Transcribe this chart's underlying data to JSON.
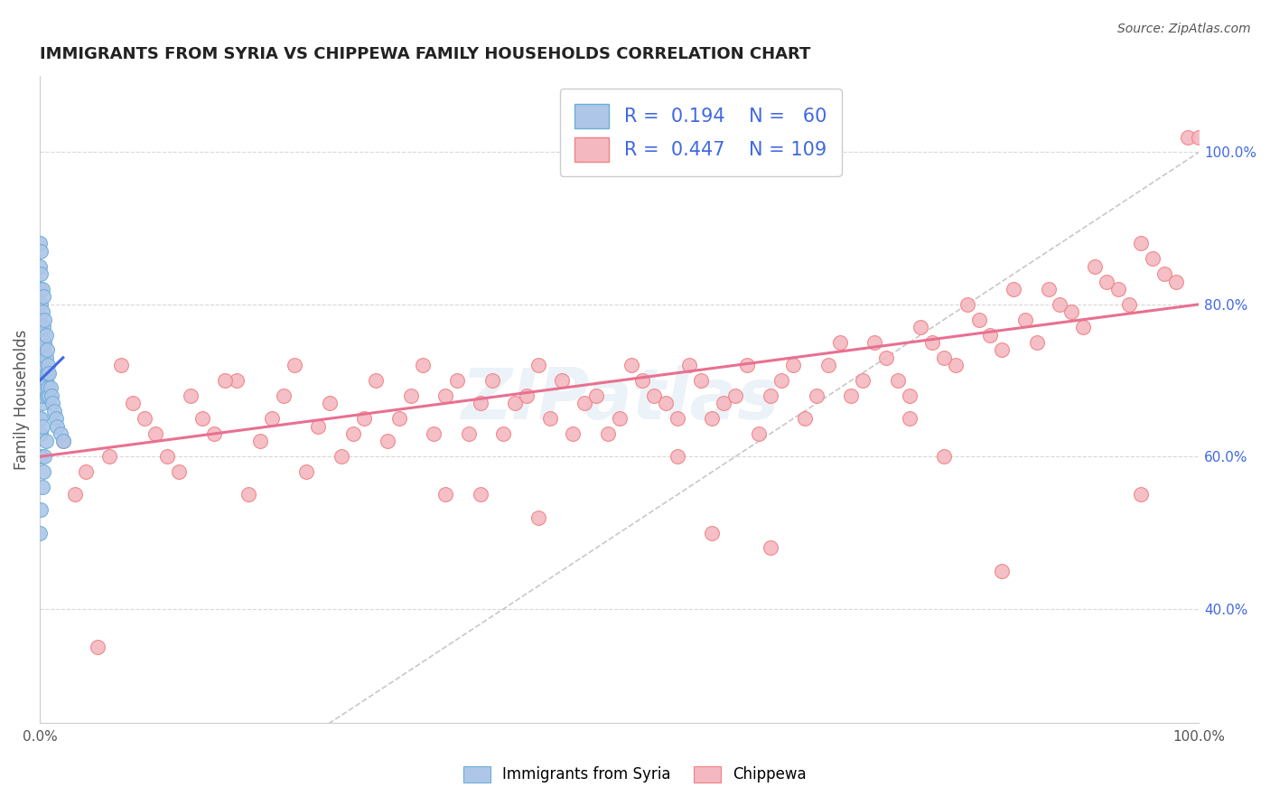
{
  "title": "IMMIGRANTS FROM SYRIA VS CHIPPEWA FAMILY HOUSEHOLDS CORRELATION CHART",
  "source": "Source: ZipAtlas.com",
  "ylabel": "Family Households",
  "watermark": "ZIPatlas",
  "right_yticks": [
    "40.0%",
    "60.0%",
    "80.0%",
    "100.0%"
  ],
  "right_ytick_vals": [
    0.4,
    0.6,
    0.8,
    1.0
  ],
  "xlim": [
    0.0,
    1.0
  ],
  "ylim": [
    0.25,
    1.1
  ],
  "blue_R": "0.194",
  "blue_N": "60",
  "pink_R": "0.447",
  "pink_N": "109",
  "blue_color": "#aec6e8",
  "pink_color": "#f4b8c1",
  "blue_edge": "#6baed6",
  "pink_edge": "#f08080",
  "blue_line_color": "#4169e1",
  "pink_line_color": "#e87090",
  "diagonal_color": "#c8c8c8",
  "grid_color": "#d8d8d8",
  "title_color": "#222222",
  "source_color": "#555555",
  "legend_text_color": "#4169e1",
  "blue_scatter_x": [
    0.0,
    0.0,
    0.0,
    0.0,
    0.0,
    0.0,
    0.0,
    0.0,
    0.0,
    0.0,
    0.001,
    0.001,
    0.001,
    0.001,
    0.001,
    0.001,
    0.001,
    0.001,
    0.001,
    0.001,
    0.002,
    0.002,
    0.002,
    0.002,
    0.002,
    0.002,
    0.002,
    0.003,
    0.003,
    0.003,
    0.003,
    0.003,
    0.004,
    0.004,
    0.004,
    0.004,
    0.005,
    0.005,
    0.005,
    0.006,
    0.006,
    0.006,
    0.007,
    0.007,
    0.008,
    0.008,
    0.009,
    0.01,
    0.011,
    0.012,
    0.014,
    0.015,
    0.018,
    0.02,
    0.0,
    0.001,
    0.002,
    0.003,
    0.004,
    0.005
  ],
  "blue_scatter_y": [
    0.88,
    0.85,
    0.82,
    0.78,
    0.75,
    0.72,
    0.7,
    0.68,
    0.65,
    0.63,
    0.87,
    0.84,
    0.8,
    0.77,
    0.74,
    0.71,
    0.68,
    0.65,
    0.63,
    0.6,
    0.82,
    0.79,
    0.76,
    0.73,
    0.7,
    0.67,
    0.64,
    0.81,
    0.77,
    0.74,
    0.71,
    0.68,
    0.78,
    0.75,
    0.72,
    0.69,
    0.76,
    0.73,
    0.7,
    0.74,
    0.71,
    0.68,
    0.72,
    0.69,
    0.71,
    0.68,
    0.69,
    0.68,
    0.67,
    0.66,
    0.65,
    0.64,
    0.63,
    0.62,
    0.5,
    0.53,
    0.56,
    0.58,
    0.6,
    0.62
  ],
  "pink_scatter_x": [
    0.02,
    0.04,
    0.07,
    0.09,
    0.11,
    0.13,
    0.15,
    0.17,
    0.2,
    0.22,
    0.03,
    0.06,
    0.08,
    0.1,
    0.12,
    0.14,
    0.16,
    0.19,
    0.21,
    0.24,
    0.25,
    0.27,
    0.29,
    0.31,
    0.33,
    0.35,
    0.37,
    0.39,
    0.41,
    0.43,
    0.26,
    0.28,
    0.3,
    0.32,
    0.34,
    0.36,
    0.38,
    0.4,
    0.42,
    0.44,
    0.45,
    0.47,
    0.49,
    0.51,
    0.53,
    0.55,
    0.57,
    0.59,
    0.61,
    0.63,
    0.46,
    0.48,
    0.5,
    0.52,
    0.54,
    0.56,
    0.58,
    0.6,
    0.62,
    0.64,
    0.65,
    0.67,
    0.69,
    0.71,
    0.73,
    0.75,
    0.77,
    0.79,
    0.81,
    0.83,
    0.66,
    0.68,
    0.7,
    0.72,
    0.74,
    0.76,
    0.78,
    0.8,
    0.82,
    0.84,
    0.85,
    0.87,
    0.89,
    0.91,
    0.93,
    0.95,
    0.97,
    0.99,
    0.86,
    0.88,
    0.9,
    0.92,
    0.94,
    0.96,
    0.98,
    1.0,
    0.18,
    0.38,
    0.58,
    0.78,
    0.23,
    0.43,
    0.63,
    0.83,
    0.05,
    0.35,
    0.55,
    0.75,
    0.95
  ],
  "pink_scatter_y": [
    0.62,
    0.58,
    0.72,
    0.65,
    0.6,
    0.68,
    0.63,
    0.7,
    0.65,
    0.72,
    0.55,
    0.6,
    0.67,
    0.63,
    0.58,
    0.65,
    0.7,
    0.62,
    0.68,
    0.64,
    0.67,
    0.63,
    0.7,
    0.65,
    0.72,
    0.68,
    0.63,
    0.7,
    0.67,
    0.72,
    0.6,
    0.65,
    0.62,
    0.68,
    0.63,
    0.7,
    0.67,
    0.63,
    0.68,
    0.65,
    0.7,
    0.67,
    0.63,
    0.72,
    0.68,
    0.65,
    0.7,
    0.67,
    0.72,
    0.68,
    0.63,
    0.68,
    0.65,
    0.7,
    0.67,
    0.72,
    0.65,
    0.68,
    0.63,
    0.7,
    0.72,
    0.68,
    0.75,
    0.7,
    0.73,
    0.68,
    0.75,
    0.72,
    0.78,
    0.74,
    0.65,
    0.72,
    0.68,
    0.75,
    0.7,
    0.77,
    0.73,
    0.8,
    0.76,
    0.82,
    0.78,
    0.82,
    0.79,
    0.85,
    0.82,
    0.88,
    0.84,
    1.02,
    0.75,
    0.8,
    0.77,
    0.83,
    0.8,
    0.86,
    0.83,
    1.02,
    0.55,
    0.55,
    0.5,
    0.6,
    0.58,
    0.52,
    0.48,
    0.45,
    0.35,
    0.55,
    0.6,
    0.65,
    0.55
  ]
}
